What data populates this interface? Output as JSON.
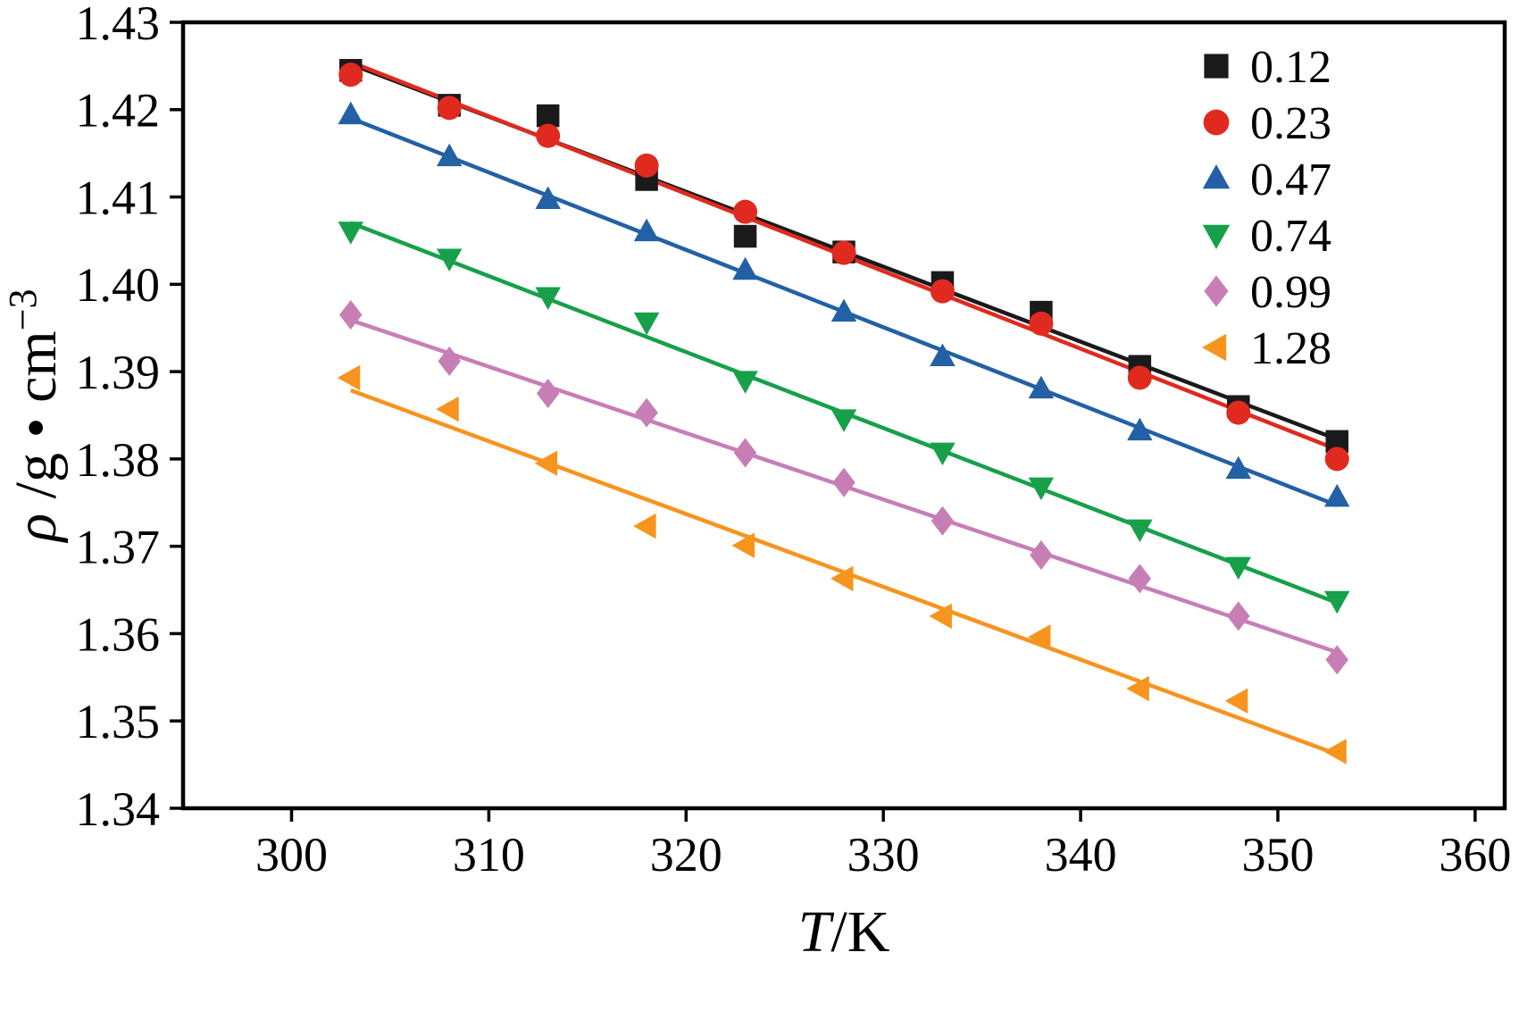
{
  "chart_data": {
    "type": "scatter",
    "title": "",
    "xlabel": "T/K",
    "ylabel": "ρ /g • cm⁻³",
    "xlabel_rich": [
      {
        "text": "T",
        "italic": true
      },
      {
        "text": "/K",
        "italic": false
      }
    ],
    "ylabel_rich": [
      {
        "text": "ρ",
        "italic": true
      },
      {
        "text": " /g • cm",
        "italic": false
      },
      {
        "text": "−3",
        "super": true
      }
    ],
    "xlim": [
      294.5,
      361.5
    ],
    "ylim": [
      1.34,
      1.43
    ],
    "xticks": [
      300,
      310,
      320,
      330,
      340,
      350,
      360
    ],
    "xtick_labels": [
      "300",
      "310",
      "320",
      "330",
      "340",
      "350",
      "360"
    ],
    "yticks": [
      1.34,
      1.35,
      1.36,
      1.37,
      1.38,
      1.39,
      1.4,
      1.41,
      1.42,
      1.43
    ],
    "ytick_labels": [
      "1.34",
      "1.35",
      "1.36",
      "1.37",
      "1.38",
      "1.39",
      "1.40",
      "1.41",
      "1.42",
      "1.43"
    ],
    "grid": false,
    "legend_position": "top-right",
    "x": [
      303,
      308,
      313,
      318,
      323,
      328,
      333,
      338,
      343,
      348,
      353
    ],
    "series": [
      {
        "name": "0.12",
        "marker": "square",
        "color": "#1a1a1a",
        "values": [
          1.4245,
          1.4205,
          1.4193,
          1.412,
          1.4055,
          1.4037,
          1.4002,
          1.3968,
          1.3906,
          1.386,
          1.382
        ]
      },
      {
        "name": "0.23",
        "marker": "circle",
        "color": "#e02a20",
        "values": [
          1.424,
          1.4202,
          1.417,
          1.4136,
          1.4083,
          1.4036,
          1.3992,
          1.3955,
          1.3893,
          1.3853,
          1.38
        ]
      },
      {
        "name": "0.47",
        "marker": "triangle-up",
        "color": "#2360a5",
        "values": [
          1.4194,
          1.4146,
          1.4097,
          1.406,
          1.4016,
          1.3968,
          1.3917,
          1.388,
          1.3832,
          1.3788,
          1.3756
        ]
      },
      {
        "name": "0.74",
        "marker": "triangle-down",
        "color": "#17a04a",
        "values": [
          1.4061,
          1.403,
          1.3986,
          1.3957,
          1.389,
          1.3846,
          1.3808,
          1.3768,
          1.372,
          1.3677,
          1.3638
        ]
      },
      {
        "name": "0.99",
        "marker": "diamond",
        "color": "#c77eb5",
        "values": [
          1.3965,
          1.3912,
          1.3875,
          1.3853,
          1.3807,
          1.3773,
          1.3729,
          1.369,
          1.3663,
          1.362,
          1.357
        ]
      },
      {
        "name": "1.28",
        "marker": "triangle-left",
        "color": "#f7941e",
        "values": [
          1.3893,
          1.3857,
          1.3795,
          1.3723,
          1.3701,
          1.3663,
          1.362,
          1.3596,
          1.3537,
          1.3523,
          1.3465
        ]
      }
    ]
  },
  "style": {
    "axis_color": "#000000",
    "background": "#ffffff"
  }
}
